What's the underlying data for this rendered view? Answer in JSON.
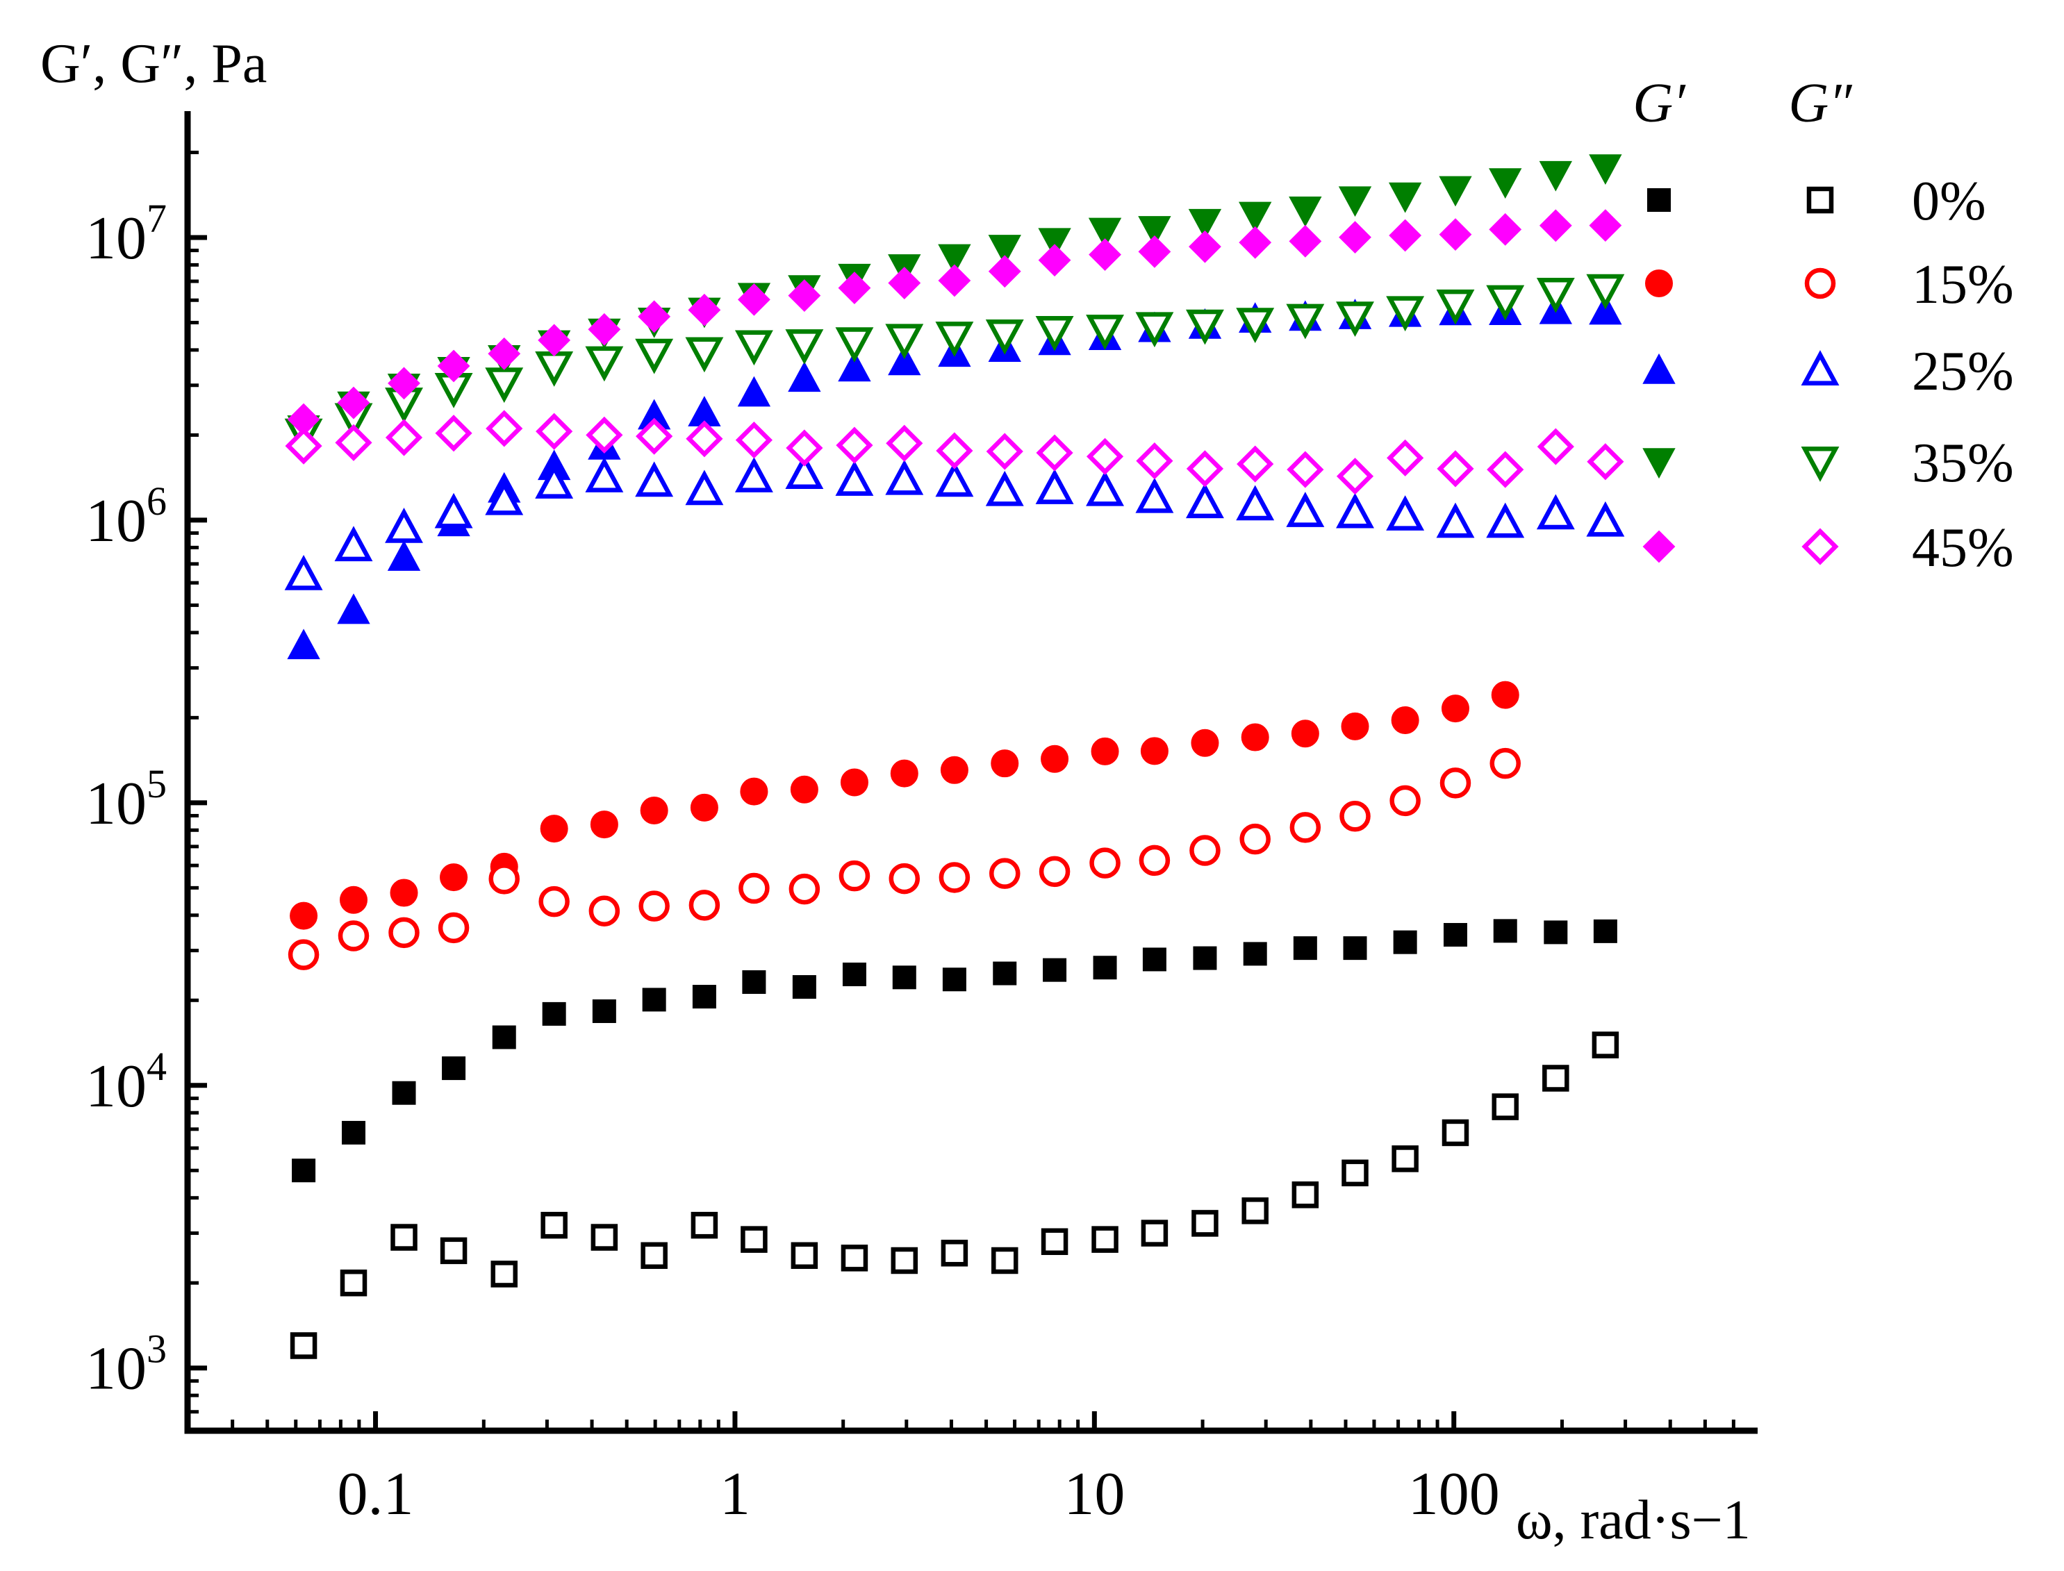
{
  "chart_data": {
    "type": "scatter",
    "xscale": "log",
    "yscale": "log",
    "xlim": [
      0.03,
      700
    ],
    "ylim": [
      600,
      28000000
    ],
    "ylabel": "G′, G″, Pa",
    "xlabel": "ω, rad·s−1",
    "xtick_labels": [
      "0.1",
      "1",
      "10",
      "100"
    ],
    "ytick_labels": [
      {
        "base": "10",
        "exp": "3"
      },
      {
        "base": "10",
        "exp": "4"
      },
      {
        "base": "10",
        "exp": "5"
      },
      {
        "base": "10",
        "exp": "6"
      },
      {
        "base": "10",
        "exp": "7"
      }
    ],
    "legend": {
      "header_gp": "G′",
      "header_gpp": "G″",
      "placement": "top-right",
      "entries": [
        "0%",
        "15%",
        "25%",
        "35%",
        "45%"
      ]
    },
    "series": [
      {
        "name": "0% G′",
        "marker": "square",
        "fill": "filled",
        "color": "#000000",
        "x": [
          0.0631,
          0.0869,
          0.12,
          0.165,
          0.228,
          0.314,
          0.433,
          0.596,
          0.822,
          1.13,
          1.56,
          2.15,
          2.96,
          4.08,
          5.63,
          7.75,
          10.7,
          14.7,
          20.3,
          28,
          38.6,
          53.1,
          73.2,
          101,
          139,
          192,
          264
        ],
        "y": [
          5000,
          6800,
          9400,
          11500,
          14800,
          17900,
          18300,
          20100,
          20600,
          23200,
          22300,
          24700,
          24100,
          23700,
          24900,
          25600,
          26100,
          27900,
          28200,
          29200,
          30600,
          30600,
          32100,
          34100,
          35200,
          34800,
          35100
        ]
      },
      {
        "name": "0% G″",
        "marker": "square",
        "fill": "open",
        "color": "#000000",
        "x": [
          0.0631,
          0.0869,
          0.12,
          0.165,
          0.228,
          0.314,
          0.433,
          0.596,
          0.822,
          1.13,
          1.56,
          2.15,
          2.96,
          4.08,
          5.63,
          7.75,
          10.7,
          14.7,
          20.3,
          28,
          38.6,
          53.1,
          73.2,
          101,
          139,
          192,
          264
        ],
        "y": [
          1200,
          2000,
          2900,
          2600,
          2150,
          3200,
          2900,
          2500,
          3200,
          2850,
          2500,
          2450,
          2400,
          2550,
          2400,
          2800,
          2850,
          3000,
          3250,
          3600,
          4100,
          4900,
          5500,
          6800,
          8400,
          10600,
          13900
        ]
      },
      {
        "name": "15% G′",
        "marker": "circle",
        "fill": "filled",
        "color": "#ff0000",
        "x": [
          0.0631,
          0.0869,
          0.12,
          0.165,
          0.228,
          0.314,
          0.433,
          0.596,
          0.822,
          1.13,
          1.56,
          2.15,
          2.96,
          4.08,
          5.63,
          7.75,
          10.7,
          14.7,
          20.3,
          28,
          38.6,
          53.1,
          73.2,
          101,
          139
        ],
        "y": [
          39800,
          45300,
          48000,
          54500,
          59400,
          81000,
          83800,
          93900,
          96100,
          109600,
          111400,
          118100,
          127000,
          130500,
          137800,
          142900,
          152000,
          152400,
          162800,
          170500,
          175700,
          186300,
          195900,
          215500,
          240700
        ]
      },
      {
        "name": "15% G″",
        "marker": "circle",
        "fill": "open",
        "color": "#ff0000",
        "x": [
          0.0631,
          0.0869,
          0.12,
          0.165,
          0.228,
          0.314,
          0.433,
          0.596,
          0.822,
          1.13,
          1.56,
          2.15,
          2.96,
          4.08,
          5.63,
          7.75,
          10.7,
          14.7,
          20.3,
          28,
          38.6,
          53.1,
          73.2,
          101,
          139
        ],
        "y": [
          29000,
          33800,
          34700,
          36100,
          53800,
          44700,
          41400,
          43100,
          43400,
          49800,
          49500,
          55100,
          53900,
          54400,
          56200,
          57100,
          61200,
          62500,
          67800,
          74400,
          81800,
          89600,
          101700,
          117500,
          137800
        ]
      },
      {
        "name": "25% G′",
        "marker": "triangle-up",
        "fill": "filled",
        "color": "#0000ff",
        "x": [
          0.0631,
          0.0869,
          0.12,
          0.165,
          0.228,
          0.314,
          0.433,
          0.596,
          0.822,
          1.13,
          1.56,
          2.15,
          2.96,
          4.08,
          5.63,
          7.75,
          10.7,
          14.7,
          20.3,
          28,
          38.6,
          53.1,
          73.2,
          101,
          139,
          192,
          264
        ],
        "y": [
          360000,
          480000,
          740000,
          980000,
          1290000,
          1550000,
          1830000,
          2340000,
          2400000,
          2820000,
          3180000,
          3460000,
          3640000,
          3900000,
          4060000,
          4290000,
          4470000,
          4770000,
          4900000,
          5150000,
          5230000,
          5300000,
          5400000,
          5470000,
          5480000,
          5520000,
          5500000
        ]
      },
      {
        "name": "25% G″",
        "marker": "triangle-up",
        "fill": "open",
        "color": "#0000ff",
        "x": [
          0.0631,
          0.0869,
          0.12,
          0.165,
          0.228,
          0.314,
          0.433,
          0.596,
          0.822,
          1.13,
          1.56,
          2.15,
          2.96,
          4.08,
          5.63,
          7.75,
          10.7,
          14.7,
          20.3,
          28,
          38.6,
          53.1,
          73.2,
          101,
          139,
          192,
          264
        ],
        "y": [
          640000,
          810000,
          940000,
          1060000,
          1180000,
          1350000,
          1420000,
          1370000,
          1280000,
          1420000,
          1460000,
          1380000,
          1390000,
          1370000,
          1270000,
          1290000,
          1270000,
          1200000,
          1150000,
          1130000,
          1070000,
          1060000,
          1040000,
          980000,
          980000,
          1050000,
          990000
        ]
      },
      {
        "name": "35% G′",
        "marker": "triangle-down",
        "fill": "filled",
        "color": "#007f00",
        "x": [
          0.0631,
          0.0869,
          0.12,
          0.165,
          0.228,
          0.314,
          0.433,
          0.596,
          0.822,
          1.13,
          1.56,
          2.15,
          2.96,
          4.08,
          5.63,
          7.75,
          10.7,
          14.7,
          20.3,
          28,
          38.6,
          53.1,
          73.2,
          101,
          139,
          192,
          264
        ],
        "y": [
          2100000,
          2550000,
          2950000,
          3380000,
          3720000,
          4200000,
          4620000,
          5050000,
          5480000,
          6180000,
          6580000,
          7220000,
          7800000,
          8470000,
          9140000,
          9660000,
          10500000,
          10650000,
          11290000,
          11960000,
          12490000,
          13570000,
          14000000,
          14750000,
          15730000,
          16680000,
          17610000
        ]
      },
      {
        "name": "35% G″",
        "marker": "triangle-down",
        "fill": "open",
        "color": "#007f00",
        "x": [
          0.0631,
          0.0869,
          0.12,
          0.165,
          0.228,
          0.314,
          0.433,
          0.596,
          0.822,
          1.13,
          1.56,
          2.15,
          2.96,
          4.08,
          5.63,
          7.75,
          10.7,
          14.7,
          20.3,
          28,
          38.6,
          53.1,
          73.2,
          101,
          139,
          192,
          264
        ],
        "y": [
          2020000,
          2290000,
          2600000,
          2930000,
          3060000,
          3490000,
          3640000,
          3870000,
          3920000,
          4150000,
          4180000,
          4250000,
          4370000,
          4450000,
          4530000,
          4660000,
          4710000,
          4810000,
          4910000,
          4980000,
          5140000,
          5240000,
          5480000,
          5780000,
          5990000,
          6360000,
          6550000
        ]
      },
      {
        "name": "45% G′",
        "marker": "diamond",
        "fill": "filled",
        "color": "#ff00ff",
        "x": [
          0.0631,
          0.0869,
          0.12,
          0.165,
          0.228,
          0.314,
          0.433,
          0.596,
          0.822,
          1.13,
          1.56,
          2.15,
          2.96,
          4.08,
          5.63,
          7.75,
          10.7,
          14.7,
          20.3,
          28,
          38.6,
          53.1,
          73.2,
          101,
          139,
          192,
          264
        ],
        "y": [
          2270000,
          2600000,
          3050000,
          3510000,
          3880000,
          4330000,
          4730000,
          5250000,
          5540000,
          6030000,
          6230000,
          6630000,
          6900000,
          7040000,
          7590000,
          8310000,
          8700000,
          8910000,
          9280000,
          9600000,
          9700000,
          10020000,
          10170000,
          10250000,
          10680000,
          11020000,
          11030000
        ]
      },
      {
        "name": "45% G″",
        "marker": "diamond",
        "fill": "open",
        "color": "#ff00ff",
        "x": [
          0.0631,
          0.0869,
          0.12,
          0.165,
          0.228,
          0.314,
          0.433,
          0.596,
          0.822,
          1.13,
          1.56,
          2.15,
          2.96,
          4.08,
          5.63,
          7.75,
          10.7,
          14.7,
          20.3,
          28,
          38.6,
          53.1,
          73.2,
          101,
          139,
          192,
          264
        ],
        "y": [
          1830000,
          1880000,
          1960000,
          2030000,
          2110000,
          2060000,
          2000000,
          1980000,
          1940000,
          1920000,
          1800000,
          1840000,
          1870000,
          1760000,
          1750000,
          1730000,
          1680000,
          1620000,
          1520000,
          1580000,
          1510000,
          1430000,
          1660000,
          1520000,
          1510000,
          1820000,
          1610000
        ]
      }
    ]
  }
}
